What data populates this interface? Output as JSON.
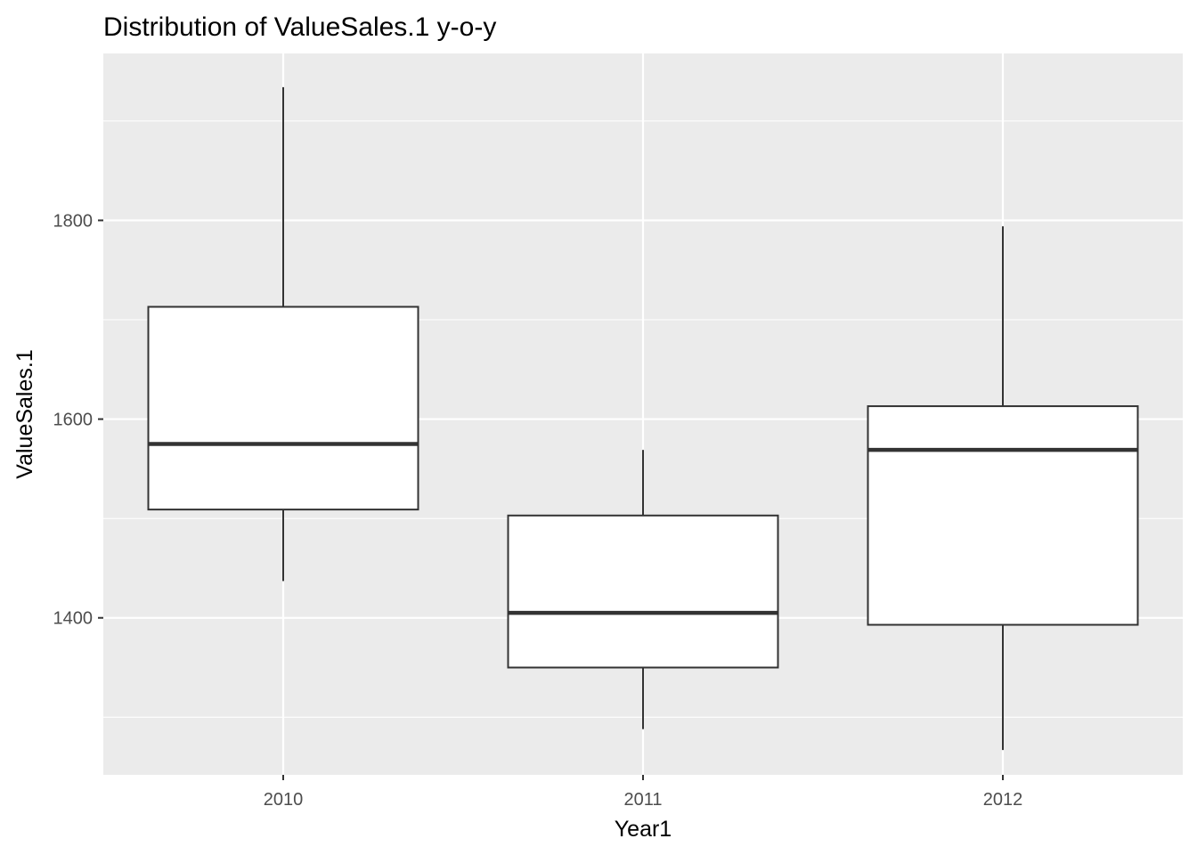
{
  "chart_data": {
    "type": "box",
    "title": "Distribution of ValueSales.1 y-o-y",
    "xlabel": "Year1",
    "ylabel": "ValueSales.1",
    "categories": [
      "2010",
      "2011",
      "2012"
    ],
    "ylim": [
      1242,
      1968
    ],
    "y_ticks": [
      1400,
      1600,
      1800
    ],
    "y_tick_labels": [
      "1400",
      "1600",
      "1800"
    ],
    "grid": true,
    "boxes": [
      {
        "category": "2010",
        "whisker_low": 1437,
        "q1": 1509,
        "median": 1575,
        "q3": 1713,
        "whisker_high": 1934
      },
      {
        "category": "2011",
        "whisker_low": 1288,
        "q1": 1350,
        "median": 1405,
        "q3": 1503,
        "whisker_high": 1569
      },
      {
        "category": "2012",
        "whisker_low": 1267,
        "q1": 1393,
        "median": 1569,
        "q3": 1613,
        "whisker_high": 1794
      }
    ],
    "colors": {
      "panel_background": "#ebebeb",
      "grid_line": "#ffffff",
      "box_fill": "#ffffff",
      "box_stroke": "#333333",
      "tick_label": "#4d4d4d",
      "tick_mark": "#333333",
      "text": "#000000"
    }
  }
}
